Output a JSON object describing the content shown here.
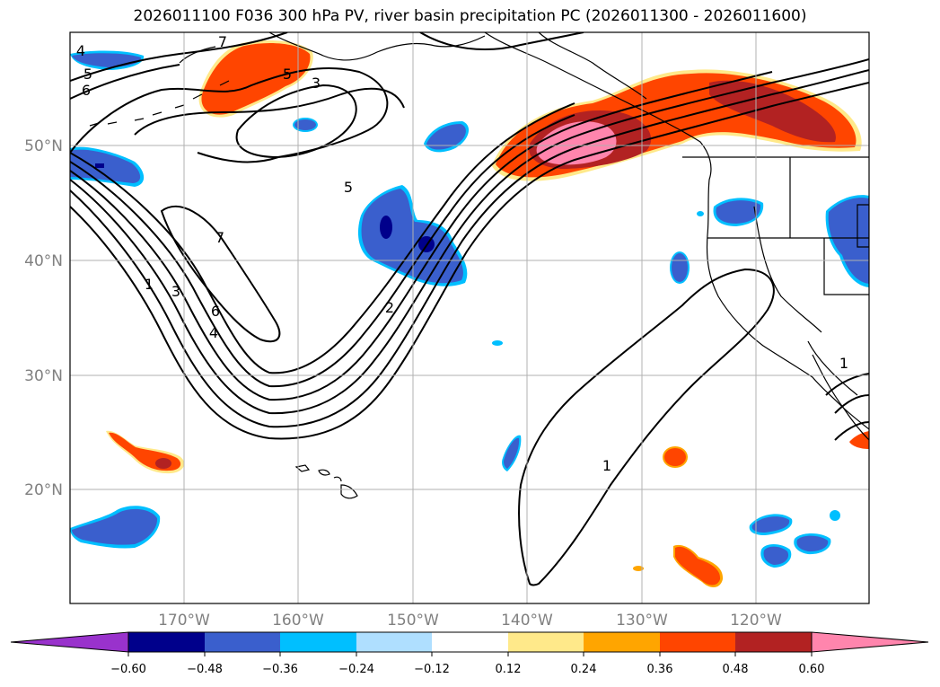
{
  "title": "2026011100 F036 300 hPa PV, river basin precipitation PC (2026011300 - 2026011600)",
  "map": {
    "lon_labels": [
      "170°W",
      "160°W",
      "150°W",
      "140°W",
      "130°W",
      "120°W"
    ],
    "lat_labels": [
      "50°N",
      "40°N",
      "30°N",
      "20°N"
    ],
    "contour_labels": [
      "4",
      "5",
      "6",
      "7",
      "5",
      "3",
      "7",
      "5",
      "1",
      "3",
      "6",
      "4",
      "2",
      "1",
      "1"
    ]
  },
  "colorbar": {
    "ticks": [
      "−0.60",
      "−0.48",
      "−0.36",
      "−0.24",
      "−0.12",
      "0.12",
      "0.24",
      "0.36",
      "0.48",
      "0.60"
    ],
    "colors": [
      "#9932cc",
      "#00008b",
      "#3a5fcd",
      "#00bfff",
      "#afdfff",
      "#ffffff",
      "#ffe98a",
      "#ffa500",
      "#ff4500",
      "#b22222",
      "#ff85ad"
    ]
  },
  "colors": {
    "neg_light": "#afdfff",
    "neg_mid": "#00bfff",
    "neg_blue": "#3a5fcd",
    "neg_dark": "#00008b",
    "pos_yellow": "#ffe98a",
    "pos_orange": "#ffa500",
    "pos_redorange": "#ff4500",
    "pos_firebrick": "#b22222",
    "pos_pink": "#ff85ad",
    "gridline": "#b0b0b0",
    "coast": "#000000",
    "contour": "#000000"
  }
}
